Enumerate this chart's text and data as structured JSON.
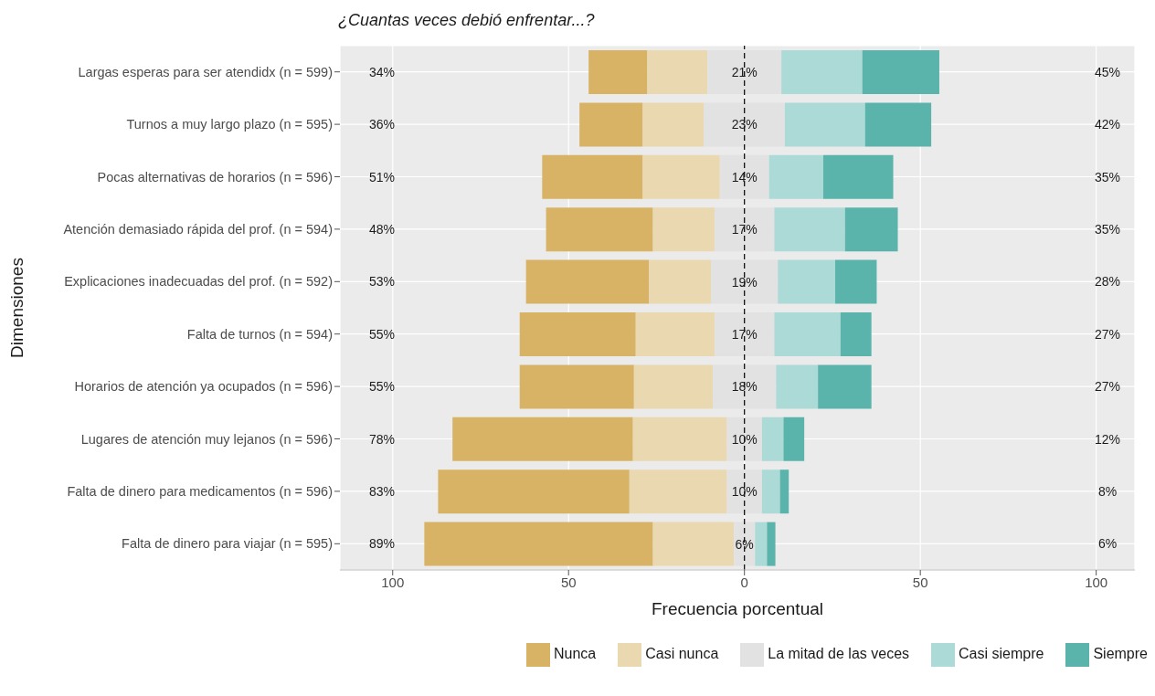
{
  "chart_data": {
    "type": "bar",
    "orientation": "horizontal",
    "title": "¿Cuantas veces debió enfrentar...?",
    "xlabel": "Frecuencia porcentual",
    "ylabel": "Dimensiones",
    "categories": [
      "Largas esperas para ser atendidx (n = 599)",
      "Turnos a muy largo plazo (n = 595)",
      "Pocas alternativas de horarios (n = 596)",
      "Atención demasiado rápida del prof. (n = 594)",
      "Explicaciones inadecuadas del prof. (n = 592)",
      "Falta de turnos (n = 594)",
      "Horarios de atención ya ocupados (n = 596)",
      "Lugares de atención muy lejanos (n = 596)",
      "Falta de dinero para medicamentos (n = 596)",
      "Falta de dinero para viajar (n = 595)"
    ],
    "series": [
      {
        "name": "Nunca",
        "color": "#d8b365",
        "base": [
          -44.3,
          -46.9,
          -57.5,
          -56.4,
          -62.1,
          -63.9,
          -63.9,
          -83.0,
          -87.1,
          -91.0
        ],
        "values": [
          16.7,
          18.0,
          28.6,
          30.4,
          35.0,
          33.0,
          32.5,
          51.3,
          54.4,
          65.0
        ]
      },
      {
        "name": "Casi nunca",
        "color": "#ead9b0",
        "base": [
          -27.6,
          -28.9,
          -28.9,
          -26.0,
          -27.1,
          -30.9,
          -31.4,
          -31.7,
          -32.7,
          -26.0
        ],
        "values": [
          17.1,
          17.4,
          21.9,
          17.5,
          17.6,
          22.4,
          22.4,
          26.7,
          27.7,
          23.0
        ]
      },
      {
        "name": "La mitad de las veces",
        "color": "#e2e2e2",
        "base": [
          -10.5,
          -11.5,
          -7,
          -8.5,
          -9.5,
          -8.5,
          -9,
          -5,
          -5,
          -3
        ],
        "values": [
          21,
          23,
          14,
          17,
          19,
          17,
          18,
          10,
          10,
          6
        ],
        "value_labels": [
          "21%",
          "23%",
          "14%",
          "17%",
          "19%",
          "17%",
          "18%",
          "10%",
          "10%",
          "6%"
        ]
      },
      {
        "name": "Casi siempre",
        "color": "#acdad6",
        "base": [
          10.5,
          11.5,
          7,
          8.5,
          9.5,
          8.5,
          9,
          5,
          5,
          3
        ],
        "values": [
          23.0,
          22.8,
          15.4,
          20.1,
          16.3,
          18.8,
          11.9,
          6.1,
          5.1,
          3.4
        ]
      },
      {
        "name": "Siempre",
        "color": "#5ab4ac",
        "base": [
          33.5,
          34.3,
          22.4,
          28.6,
          25.8,
          27.3,
          20.9,
          11.1,
          10.1,
          6.4
        ],
        "values": [
          21.9,
          18.8,
          19.9,
          15.0,
          11.8,
          8.8,
          15.2,
          5.9,
          2.5,
          2.4
        ]
      }
    ],
    "xlim": [
      -115,
      111
    ],
    "xticks": [
      {
        "value": -100,
        "label": "100"
      },
      {
        "value": -50,
        "label": "50"
      },
      0,
      50,
      100
    ],
    "grid": true,
    "legend": "bottom",
    "ref_lines": [
      {
        "axis": "x",
        "value": 0,
        "color": "#000000",
        "line_style": "dashed"
      }
    ],
    "annotations": [
      "34%",
      "36%",
      "51%",
      "48%",
      "53%",
      "55%",
      "55%",
      "78%",
      "83%",
      "89%",
      "45%",
      "42%",
      "35%",
      "35%",
      "28%",
      "27%",
      "27%",
      "12%",
      "8%",
      "6%"
    ]
  }
}
